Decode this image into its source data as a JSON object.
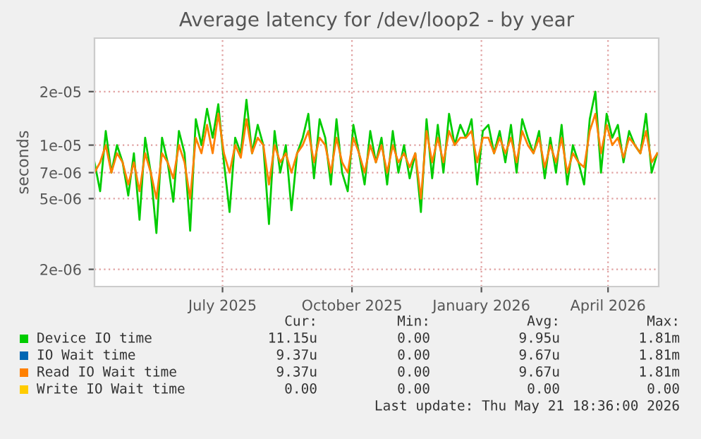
{
  "chart_data": {
    "type": "line",
    "title": "Average latency for /dev/loop2 - by year",
    "ylabel": "seconds",
    "log": true,
    "grid": true,
    "legend": "bottom",
    "marker": "none",
    "line_style": "solid",
    "xlim": [
      "2025-04-15",
      "2026-05-21"
    ],
    "xticks": [
      {
        "value": "2025-07-15",
        "label": "July 2025"
      },
      {
        "value": "2025-10-15",
        "label": "October 2025"
      },
      {
        "value": "2026-01-15",
        "label": "January 2026"
      },
      {
        "value": "2026-04-15",
        "label": "April 2026"
      }
    ],
    "ylim": [
      1.6e-06,
      4e-05
    ],
    "yticks": [
      2e-06,
      5e-06,
      7e-06,
      1e-05,
      2e-05
    ],
    "x": [
      "2025-04-15",
      "2025-04-19",
      "2025-04-23",
      "2025-04-27",
      "2025-05-01",
      "2025-05-05",
      "2025-05-09",
      "2025-05-13",
      "2025-05-17",
      "2025-05-21",
      "2025-05-25",
      "2025-05-29",
      "2025-06-02",
      "2025-06-06",
      "2025-06-10",
      "2025-06-14",
      "2025-06-18",
      "2025-06-22",
      "2025-06-26",
      "2025-06-30",
      "2025-07-04",
      "2025-07-08",
      "2025-07-12",
      "2025-07-16",
      "2025-07-20",
      "2025-07-24",
      "2025-07-28",
      "2025-08-01",
      "2025-08-05",
      "2025-08-09",
      "2025-08-13",
      "2025-08-17",
      "2025-08-21",
      "2025-08-25",
      "2025-08-29",
      "2025-09-02",
      "2025-09-06",
      "2025-09-10",
      "2025-09-14",
      "2025-09-18",
      "2025-09-22",
      "2025-09-26",
      "2025-09-30",
      "2025-10-04",
      "2025-10-08",
      "2025-10-12",
      "2025-10-16",
      "2025-10-20",
      "2025-10-24",
      "2025-10-28",
      "2025-11-01",
      "2025-11-05",
      "2025-11-09",
      "2025-11-13",
      "2025-11-17",
      "2025-11-21",
      "2025-11-25",
      "2025-11-29",
      "2025-12-03",
      "2025-12-07",
      "2025-12-11",
      "2025-12-15",
      "2025-12-19",
      "2025-12-23",
      "2025-12-27",
      "2025-12-31",
      "2026-01-04",
      "2026-01-08",
      "2026-01-12",
      "2026-01-16",
      "2026-01-20",
      "2026-01-24",
      "2026-01-28",
      "2026-02-01",
      "2026-02-05",
      "2026-02-09",
      "2026-02-13",
      "2026-02-17",
      "2026-02-21",
      "2026-02-25",
      "2026-03-01",
      "2026-03-05",
      "2026-03-09",
      "2026-03-13",
      "2026-03-17",
      "2026-03-21",
      "2026-03-25",
      "2026-03-29",
      "2026-04-02",
      "2026-04-06",
      "2026-04-10",
      "2026-04-14",
      "2026-04-18",
      "2026-04-22",
      "2026-04-26",
      "2026-04-30",
      "2026-05-04",
      "2026-05-08",
      "2026-05-12",
      "2026-05-16",
      "2026-05-20"
    ],
    "series": [
      {
        "name": "Device IO time",
        "color": "#00cc00",
        "values": [
          8e-06,
          5.5e-06,
          1.2e-05,
          7e-06,
          1e-05,
          8e-06,
          5.2e-06,
          9e-06,
          3.8e-06,
          1.1e-05,
          7e-06,
          3.2e-06,
          1.1e-05,
          8e-06,
          4.8e-06,
          1.2e-05,
          9e-06,
          3.3e-06,
          1.4e-05,
          1e-05,
          1.6e-05,
          1.1e-05,
          1.7e-05,
          8e-06,
          4.2e-06,
          1.1e-05,
          9e-06,
          1.8e-05,
          9e-06,
          1.3e-05,
          1e-05,
          3.6e-06,
          1.2e-05,
          7e-06,
          1e-05,
          4.3e-06,
          9e-06,
          1.1e-05,
          1.5e-05,
          6.5e-06,
          1.4e-05,
          1.1e-05,
          6e-06,
          1.4e-05,
          7e-06,
          5.5e-06,
          1.3e-05,
          9e-06,
          6e-06,
          1.2e-05,
          8e-06,
          1.1e-05,
          6e-06,
          1.2e-05,
          7e-06,
          1e-05,
          6.5e-06,
          9e-06,
          4.2e-06,
          1.4e-05,
          6.5e-06,
          1.3e-05,
          7e-06,
          1.5e-05,
          1e-05,
          1.3e-05,
          1.1e-05,
          1.4e-05,
          6e-06,
          1.2e-05,
          1.3e-05,
          9e-06,
          1.2e-05,
          8e-06,
          1.3e-05,
          7e-06,
          1.4e-05,
          1.1e-05,
          9e-06,
          1.2e-05,
          6.5e-06,
          1.1e-05,
          7e-06,
          1.3e-05,
          6e-06,
          1e-05,
          8e-06,
          6e-06,
          1.4e-05,
          2e-05,
          7e-06,
          1.5e-05,
          1.1e-05,
          1.3e-05,
          8e-06,
          1.2e-05,
          1e-05,
          9e-06,
          1.5e-05,
          7e-06,
          9e-06
        ]
      },
      {
        "name": "IO Wait time",
        "color": "#0066b3",
        "values": [
          null,
          null,
          null,
          null,
          null,
          null,
          null,
          null,
          null,
          null,
          null,
          null,
          null,
          null,
          null,
          null,
          null,
          null,
          null,
          null,
          null,
          null,
          null,
          null,
          null,
          null,
          null,
          null,
          null,
          null,
          null,
          null,
          null,
          null,
          null,
          null,
          null,
          null,
          null,
          null,
          null,
          null,
          null,
          null,
          null,
          null,
          null,
          null,
          null,
          null,
          null,
          null,
          null,
          null,
          null,
          null,
          null,
          null,
          null,
          null,
          null,
          null,
          null,
          null,
          null,
          null,
          null,
          null,
          null,
          null,
          null,
          null,
          null,
          null,
          null,
          null,
          null,
          null,
          null,
          null,
          null,
          null,
          null,
          null,
          null,
          null,
          null,
          null,
          null,
          null,
          null,
          null,
          null,
          null,
          null,
          null,
          null,
          null,
          null,
          null,
          null
        ]
      },
      {
        "name": "Read IO Wait time",
        "color": "#ff8000",
        "values": [
          7e-06,
          8e-06,
          1e-05,
          7e-06,
          9e-06,
          8e-06,
          6e-06,
          8e-06,
          5.5e-06,
          9e-06,
          7e-06,
          5e-06,
          9e-06,
          8e-06,
          6.5e-06,
          1e-05,
          8e-06,
          5e-06,
          1.1e-05,
          9e-06,
          1.3e-05,
          9e-06,
          1.5e-05,
          9e-06,
          7e-06,
          1e-05,
          8.5e-06,
          1.4e-05,
          9e-06,
          1.1e-05,
          1e-05,
          6e-06,
          1e-05,
          8e-06,
          9e-06,
          7e-06,
          9e-06,
          1e-05,
          1.2e-05,
          8e-06,
          1.1e-05,
          1e-05,
          7e-06,
          1.1e-05,
          8e-06,
          7e-06,
          1.1e-05,
          9e-06,
          7e-06,
          1e-05,
          8e-06,
          1e-05,
          7e-06,
          1e-05,
          8e-06,
          9e-06,
          7.5e-06,
          9e-06,
          5e-06,
          1.2e-05,
          8e-06,
          1.1e-05,
          8e-06,
          1.2e-05,
          1e-05,
          1.1e-05,
          1.1e-05,
          1.2e-05,
          8e-06,
          1.1e-05,
          1.1e-05,
          9e-06,
          1.1e-05,
          9e-06,
          1.1e-05,
          8e-06,
          1.2e-05,
          1e-05,
          9e-06,
          1.1e-05,
          7.5e-06,
          1e-05,
          8e-06,
          1.1e-05,
          7e-06,
          9e-06,
          8e-06,
          7.5e-06,
          1.2e-05,
          1.5e-05,
          9e-06,
          1.3e-05,
          1e-05,
          1.1e-05,
          8.5e-06,
          1.1e-05,
          1e-05,
          9e-06,
          1.2e-05,
          8e-06,
          9e-06
        ]
      },
      {
        "name": "Write IO Wait time",
        "color": "#ffcc00",
        "values": [
          null,
          null,
          null,
          null,
          null,
          null,
          null,
          null,
          null,
          null,
          null,
          null,
          null,
          null,
          null,
          null,
          null,
          null,
          null,
          null,
          null,
          null,
          null,
          null,
          null,
          null,
          null,
          null,
          null,
          null,
          null,
          null,
          null,
          null,
          null,
          null,
          null,
          null,
          null,
          null,
          null,
          null,
          null,
          null,
          null,
          null,
          null,
          null,
          null,
          null,
          null,
          null,
          null,
          null,
          null,
          null,
          null,
          null,
          null,
          null,
          null,
          null,
          null,
          null,
          null,
          null,
          null,
          null,
          null,
          null,
          null,
          null,
          null,
          null,
          null,
          null,
          null,
          null,
          null,
          null,
          null,
          null,
          null,
          null,
          null,
          null,
          null,
          null,
          null,
          null,
          null,
          null,
          null,
          null,
          null,
          null,
          null,
          null,
          null,
          null,
          null
        ]
      }
    ],
    "annotations": [
      "Cur:",
      "Min:",
      "Avg:",
      "Max:",
      "11.15u",
      "0.00",
      "9.95u",
      "1.81m",
      "9.37u",
      "0.00",
      "9.67u",
      "1.81m",
      "9.37u",
      "0.00",
      "9.67u",
      "1.81m",
      "0.00",
      "0.00",
      "0.00",
      "0.00",
      "Last update: Thu May 21 18:36:00 2026"
    ]
  }
}
